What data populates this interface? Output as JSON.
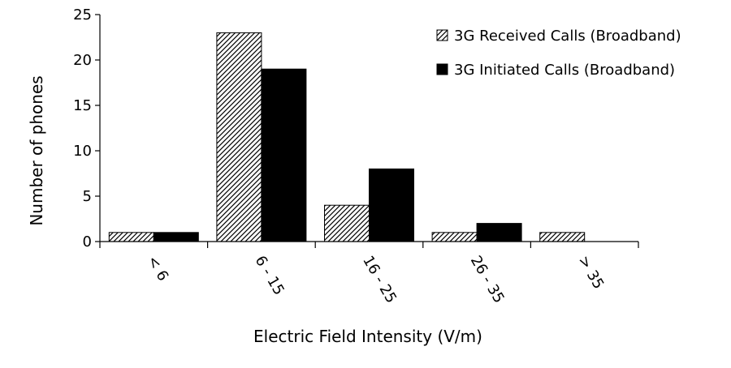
{
  "chart_data": {
    "type": "bar",
    "title": "",
    "categories": [
      "< 6",
      "6 - 15",
      "16 - 25",
      "26 - 35",
      "> 35"
    ],
    "series": [
      {
        "name": "3G Received Calls (Broadband)",
        "values": [
          1,
          23,
          4,
          1,
          1
        ],
        "fill": "hatched",
        "color": "#000000"
      },
      {
        "name": "3G Initiated Calls (Broadband)",
        "values": [
          1,
          19,
          8,
          2,
          0
        ],
        "fill": "solid",
        "color": "#000000"
      }
    ],
    "xlabel": "Electric Field Intensity (V/m)",
    "ylabel": "Number of phones",
    "ylim": [
      0,
      25
    ],
    "yticks": [
      0,
      5,
      10,
      15,
      20,
      25
    ],
    "grid": false,
    "legend_position": "top-right"
  }
}
